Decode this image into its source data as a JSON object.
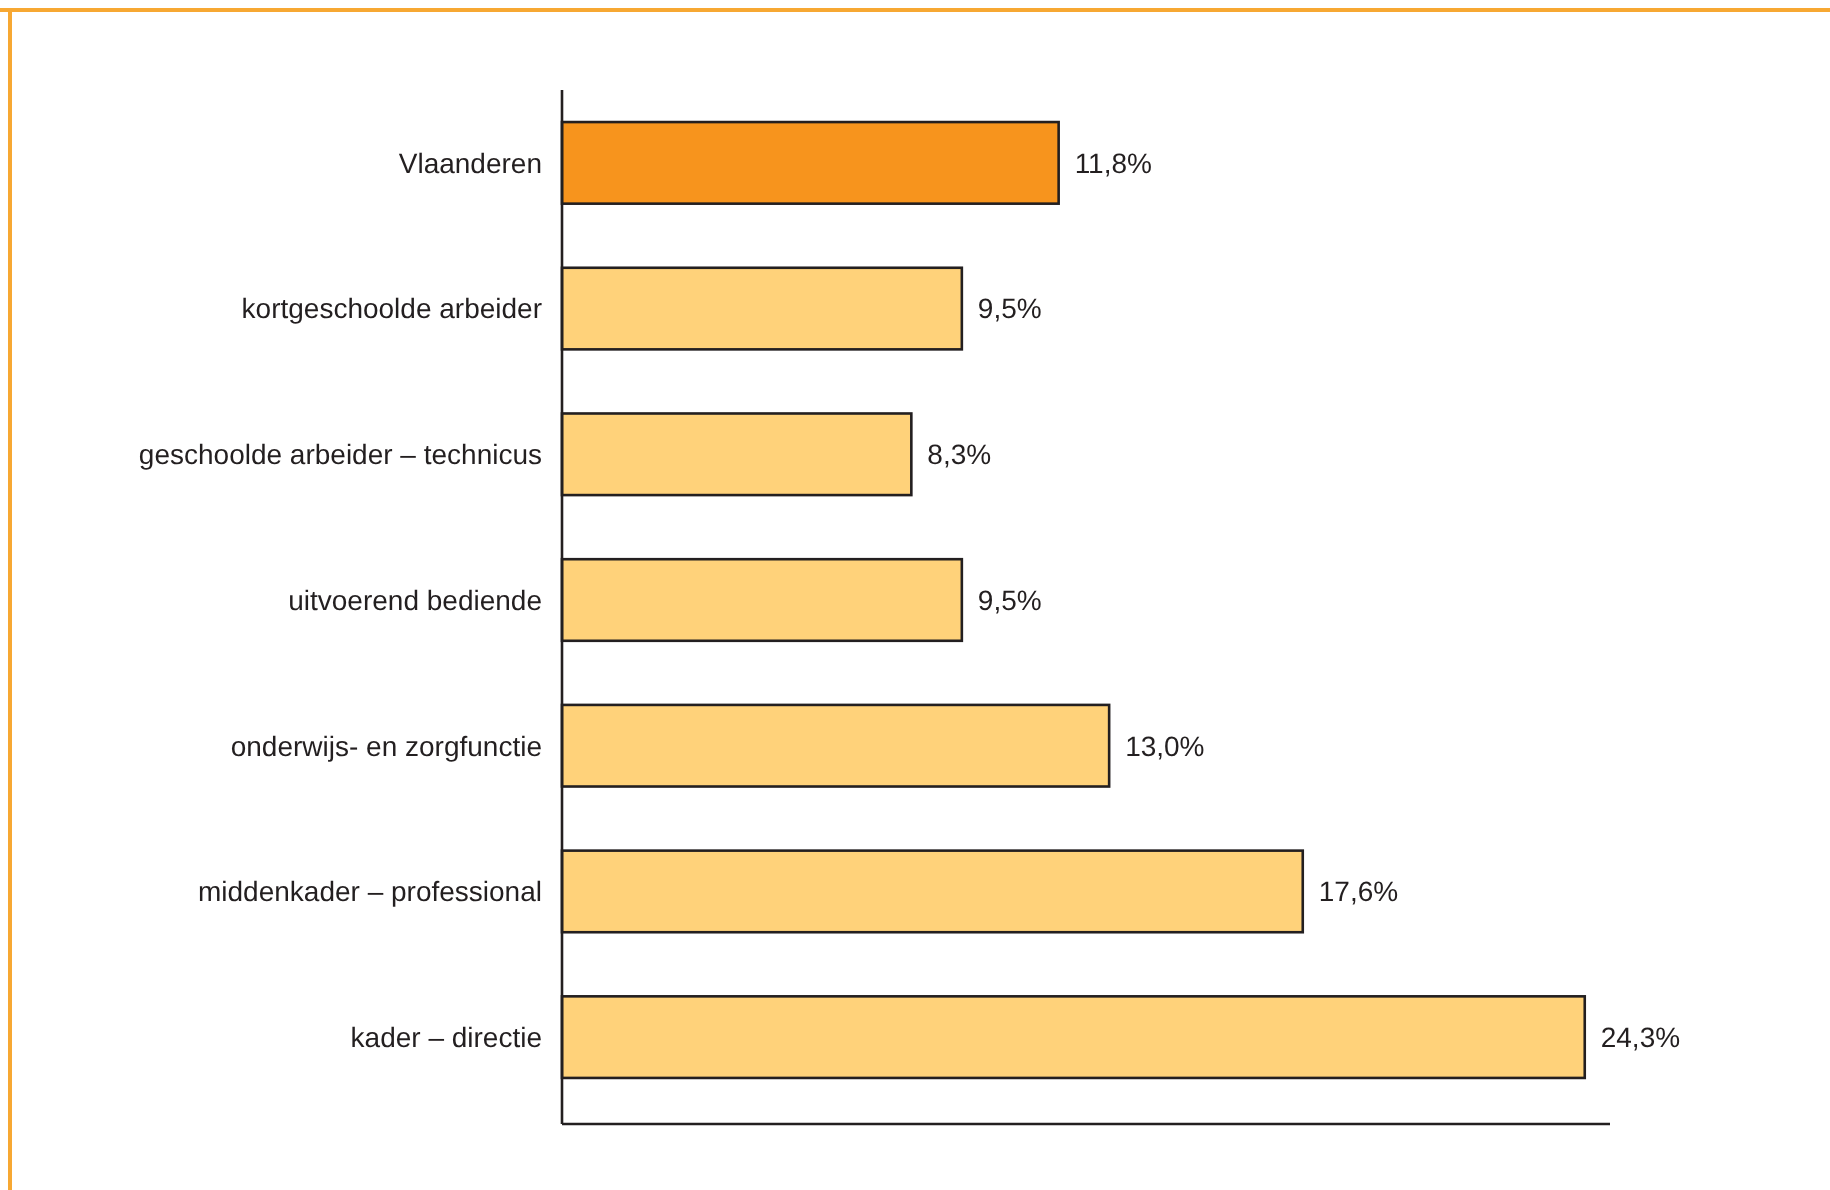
{
  "chart_data": {
    "type": "bar",
    "orientation": "horizontal",
    "categories": [
      "Vlaanderen",
      "kortgeschoolde arbeider",
      "geschoolde arbeider – technicus",
      "uitvoerend bediende",
      "onderwijs- en zorgfunctie",
      "middenkader – professional",
      "kader – directie"
    ],
    "values": [
      11.8,
      9.5,
      8.3,
      9.5,
      13.0,
      17.6,
      24.3
    ],
    "value_labels": [
      "11,8%",
      "9,5%",
      "8,3%",
      "9,5%",
      "13,0%",
      "17,6%",
      "24,3%"
    ],
    "colors": [
      "#f7941d",
      "#ffd27a",
      "#ffd27a",
      "#ffd27a",
      "#ffd27a",
      "#ffd27a",
      "#ffd27a"
    ],
    "xlim": [
      0,
      24.9
    ],
    "tick_labels": "y"
  }
}
